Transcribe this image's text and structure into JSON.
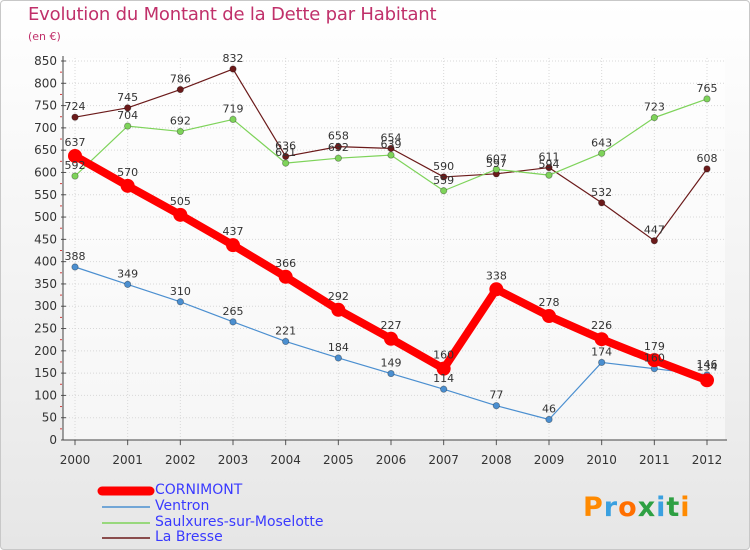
{
  "chart_data": {
    "type": "line",
    "title": "Evolution du Montant de la Dette par Habitant",
    "subtitle": "(en €)",
    "x": [
      "2000",
      "2001",
      "2002",
      "2003",
      "2004",
      "2005",
      "2006",
      "2007",
      "2008",
      "2009",
      "2010",
      "2011",
      "2012"
    ],
    "y_ticks": [
      "0",
      "50",
      "100",
      "150",
      "200",
      "250",
      "300",
      "350",
      "400",
      "450",
      "500",
      "550",
      "600",
      "650",
      "700",
      "750",
      "800",
      "850"
    ],
    "ylim": [
      0,
      850
    ],
    "grid": true,
    "legend_position": "bottom",
    "series": [
      {
        "name": "CORNIMONT",
        "color": "#ff0000",
        "values": [
          637,
          570,
          505,
          437,
          366,
          292,
          227,
          160,
          338,
          278,
          226,
          179,
          134
        ]
      },
      {
        "name": "Ventron",
        "color": "#4b8fd0",
        "values": [
          388,
          349,
          310,
          265,
          221,
          184,
          149,
          114,
          77,
          46,
          174,
          160,
          146
        ]
      },
      {
        "name": "Saulxures-sur-Moselotte",
        "color": "#7ed35a",
        "values": [
          592,
          704,
          692,
          719,
          621,
          632,
          639,
          559,
          607,
          594,
          643,
          723,
          765
        ]
      },
      {
        "name": "La Bresse",
        "color": "#6b1a1a",
        "values": [
          724,
          745,
          786,
          832,
          636,
          658,
          654,
          590,
          597,
          611,
          532,
          447,
          608
        ]
      }
    ]
  },
  "branding": {
    "logo_text": "Proxiti",
    "logo_colors": [
      "#ff8a00",
      "#3aa0e0",
      "#ff6f00",
      "#2ea043",
      "#3aa0e0",
      "#2ea043",
      "#ff8a00"
    ]
  }
}
